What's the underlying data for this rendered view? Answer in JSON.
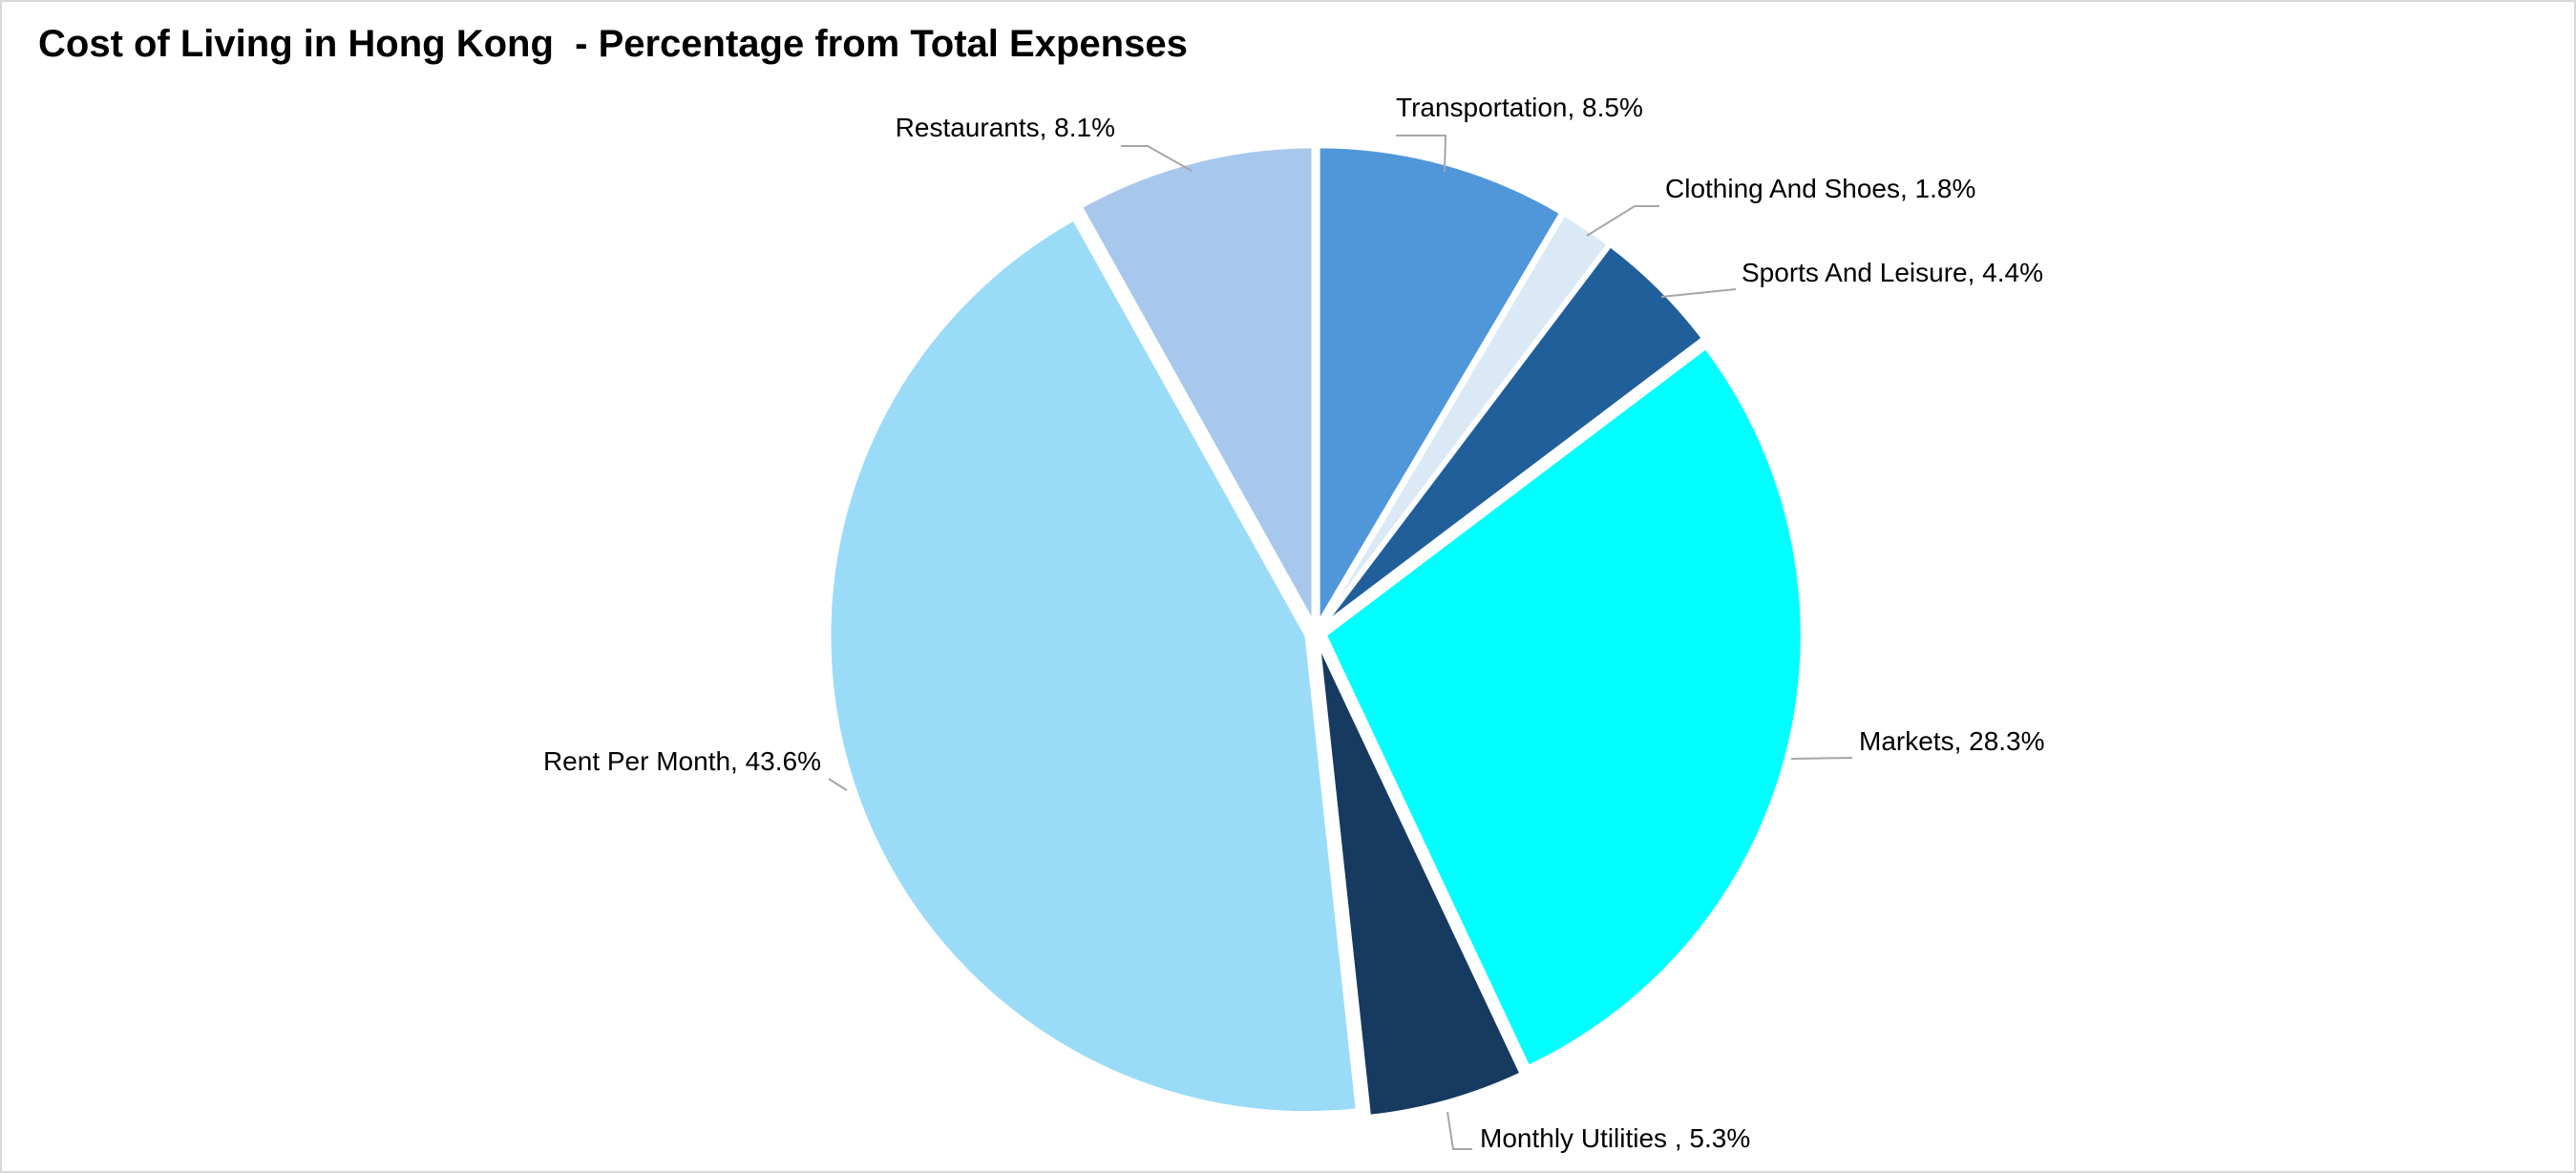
{
  "chart_data": {
    "type": "pie",
    "title": "Cost of Living in Hong Kong  - Percentage from Total Expenses",
    "slices": [
      {
        "label": "Transportation, 8.5%",
        "name": "Transportation",
        "value": 8.5,
        "color": "#5097da"
      },
      {
        "label": "Clothing And Shoes, 1.8%",
        "name": "Clothing And Shoes",
        "value": 1.8,
        "color": "#dbe9f7"
      },
      {
        "label": "Sports And Leisure, 4.4%",
        "name": "Sports And Leisure",
        "value": 4.4,
        "color": "#215f9a"
      },
      {
        "label": "Markets, 28.3%",
        "name": "Markets",
        "value": 28.3,
        "color": "#00ffff"
      },
      {
        "label": "Monthly Utilities , 5.3%",
        "name": "Monthly Utilities",
        "value": 5.3,
        "color": "#163a60"
      },
      {
        "label": "Rent Per Month, 43.6%",
        "name": "Rent Per Month",
        "value": 43.6,
        "color": "#9adcf8"
      },
      {
        "label": "Restaurants, 8.1%",
        "name": "Restaurants",
        "value": 8.1,
        "color": "#a7c8ec"
      }
    ],
    "legend": "none"
  }
}
